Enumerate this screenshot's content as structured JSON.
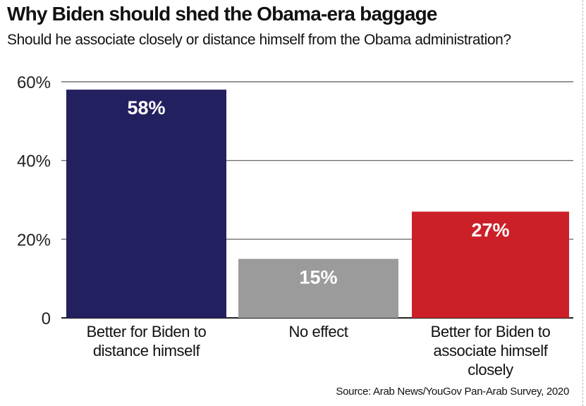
{
  "chart_data": {
    "type": "bar",
    "title": "Why Biden should shed the Obama-era baggage",
    "subtitle": "Should he associate closely or distance himself from the Obama administration?",
    "categories": [
      "Better for Biden to distance himself",
      "No effect",
      "Better for Biden to associate himself closely"
    ],
    "category_lines": [
      [
        "Better for Biden to",
        "distance himself"
      ],
      [
        "No effect"
      ],
      [
        "Better for Biden to",
        "associate himself",
        "closely"
      ]
    ],
    "values": [
      58,
      15,
      27
    ],
    "value_labels": [
      "58%",
      "15%",
      "27%"
    ],
    "colors": [
      "#232060",
      "#9b9b9b",
      "#cc2028"
    ],
    "yticks": [
      0,
      20,
      40,
      60
    ],
    "ytick_labels": [
      "0",
      "20%",
      "40%",
      "60%"
    ],
    "ylim": [
      0,
      60
    ],
    "xlabel": "",
    "ylabel": "",
    "grid": true,
    "source": "Source: Arab News/YouGov Pan-Arab Survey, 2020"
  }
}
